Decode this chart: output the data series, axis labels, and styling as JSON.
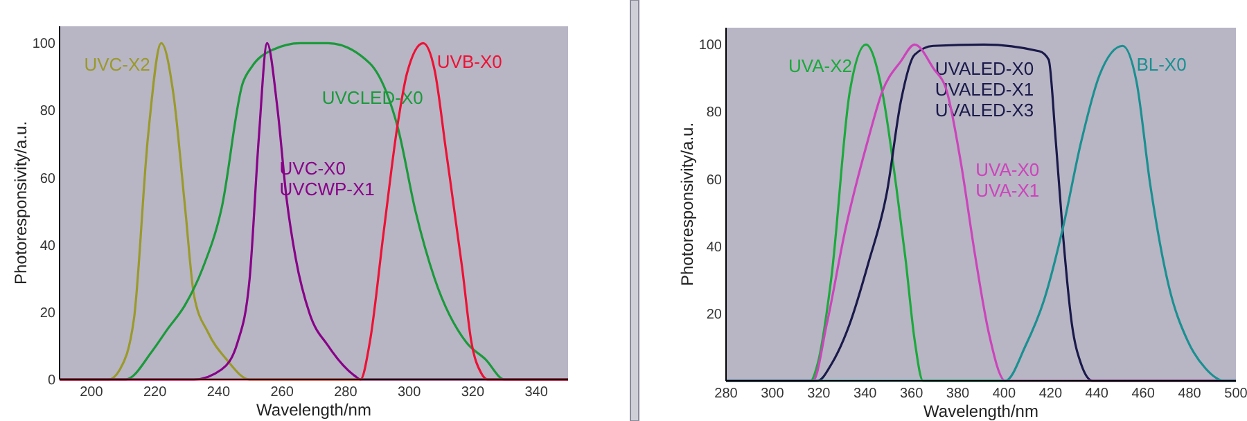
{
  "chart_data": [
    {
      "type": "line",
      "xlabel": "Wavelength/nm",
      "ylabel": "Photoresponsivity/a.u.",
      "xlim": [
        190,
        350
      ],
      "ylim": [
        0,
        105
      ],
      "xticks": [
        200,
        220,
        240,
        260,
        280,
        300,
        320,
        340
      ],
      "yticks": [
        0,
        20,
        40,
        60,
        80,
        100
      ],
      "grid": false,
      "series": [
        {
          "name": "UVC-X2",
          "color": "#9a9a2a",
          "x": [
            190,
            205.4,
            209,
            213.4,
            217.8,
            222,
            225.8,
            229.5,
            232.3,
            236.7,
            242.5,
            249.8,
            350
          ],
          "values": [
            0,
            0,
            3,
            18,
            72,
            100,
            85,
            51,
            25,
            14,
            6,
            0,
            0
          ]
        },
        {
          "name": "UVCLED-X0",
          "color": "#1a9a3a",
          "x": [
            190,
            210.8,
            219.2,
            224,
            229.4,
            235,
            241,
            247.6,
            250.5,
            257,
            265.8,
            274.5,
            287.6,
            293.4,
            296.4,
            302,
            308,
            318,
            324,
            330,
            350
          ],
          "values": [
            0,
            0,
            8.5,
            15,
            22,
            33,
            51,
            88,
            93,
            98,
            100,
            100,
            94,
            84,
            75,
            50,
            30,
            11,
            6,
            0,
            0
          ]
        },
        {
          "name": "UVC-X0\nUVCWP-X1",
          "color": "#880088",
          "x": [
            190,
            232.3,
            241,
            246,
            249.8,
            252.7,
            255.3,
            258.5,
            261.4,
            264.3,
            268.7,
            274.5,
            283,
            284.7,
            350
          ],
          "values": [
            0,
            0,
            3,
            11,
            30,
            72,
            100,
            81,
            54,
            36,
            19.5,
            10,
            1,
            0,
            0
          ]
        },
        {
          "name": "UVB-X0",
          "color": "#ee1133",
          "x": [
            190,
            284.7,
            287.6,
            292,
            296.4,
            299.3,
            304.4,
            308,
            311.6,
            316.7,
            319.6,
            322.6,
            324.7,
            350
          ],
          "values": [
            0,
            0,
            11,
            44,
            76,
            91,
            100,
            92,
            68,
            33,
            11,
            2,
            0,
            0
          ]
        }
      ]
    },
    {
      "type": "line",
      "xlabel": "Wavelength/nm",
      "ylabel": "Photoresponsivity/a.u.",
      "xlim": [
        280,
        500
      ],
      "ylim": [
        0,
        105
      ],
      "xticks": [
        280,
        300,
        320,
        340,
        360,
        380,
        400,
        420,
        440,
        460,
        480,
        500
      ],
      "yticks": [
        20,
        40,
        60,
        80,
        100
      ],
      "grid": false,
      "series": [
        {
          "name": "UVA-X2",
          "color": "#1aaa3a",
          "x": [
            280,
            316.5,
            319.5,
            325.5,
            333.4,
            340.4,
            347.4,
            353.4,
            357.4,
            361.4,
            365,
            500
          ],
          "values": [
            0,
            0,
            5,
            31,
            86,
            100,
            86,
            58,
            36.5,
            12,
            0,
            0
          ]
        },
        {
          "name": "UVALED-X0\nUVALED-X1\nUVALED-X3",
          "color": "#1a1a4a",
          "x": [
            280,
            319.5,
            325.5,
            333.4,
            341.4,
            349.4,
            355.4,
            361.4,
            369.4,
            391.3,
            415.2,
            419.2,
            422.2,
            425.2,
            429.2,
            433.2,
            438.2,
            500
          ],
          "values": [
            0,
            0,
            5,
            17,
            35,
            56,
            83,
            97,
            99.6,
            100,
            98,
            95.5,
            72,
            45,
            17,
            5,
            0,
            0
          ]
        },
        {
          "name": "UVA-X0\nUVA-X1",
          "color": "#cc44bb",
          "x": [
            280,
            317.5,
            323.5,
            331.5,
            341.4,
            347.4,
            355.4,
            361.4,
            369.4,
            375.3,
            381.3,
            387.3,
            393.3,
            400.5,
            500
          ],
          "values": [
            0,
            0,
            17,
            45,
            72,
            86,
            95,
            100,
            93,
            86,
            65,
            38,
            14.5,
            0,
            0
          ]
        },
        {
          "name": "BL-X0",
          "color": "#1a9090",
          "x": [
            280,
            400.5,
            409.2,
            417.2,
            425.2,
            433.2,
            441.2,
            451.1,
            457.1,
            463.1,
            471.1,
            479.1,
            487,
            495,
            500
          ],
          "values": [
            0,
            0,
            10.4,
            24,
            45,
            71,
            91,
            99.6,
            89,
            58,
            28,
            12,
            3.6,
            0,
            0
          ]
        }
      ]
    }
  ]
}
